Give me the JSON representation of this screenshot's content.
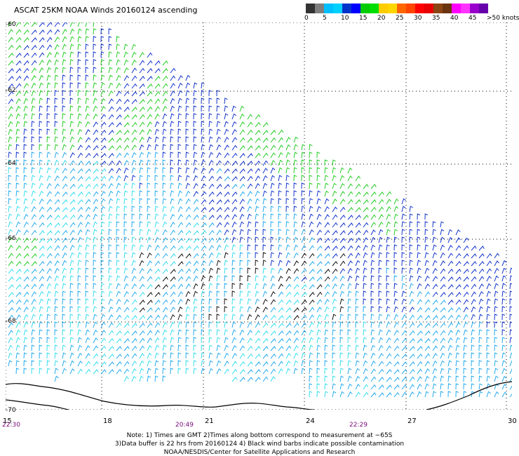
{
  "title": "ASCAT 25KM NOAA Winds 20160124 ascending",
  "scale": {
    "colors": [
      "#333333",
      "#7f7f7f",
      "#00bfff",
      "#00d0ff",
      "#0033cc",
      "#0000ff",
      "#00cc00",
      "#00dd00",
      "#ffcc00",
      "#ffd700",
      "#ff6600",
      "#ff4400",
      "#ff0000",
      "#e80000",
      "#8b4513",
      "#6b3410",
      "#ff00ff",
      "#ff33ff",
      "#9900cc",
      "#6600aa"
    ],
    "labels": [
      "0",
      "5",
      "10",
      "15",
      "20",
      "25",
      "30",
      "35",
      "40",
      "45",
      ">50 knots"
    ]
  },
  "lat_labels": [
    "-60",
    "-62",
    "-64",
    "-66",
    "-68",
    "-70"
  ],
  "lon_labels": [
    "15",
    "18",
    "21",
    "24",
    "27",
    "30"
  ],
  "time_labels": [
    "22:30",
    "20:49",
    "22:29"
  ],
  "notes": [
    "Note: 1) Times are GMT 2)Times along bottom correspond to measurement at −65S",
    "3)Data buffer is 22 hrs from 20160124 4) Black wind barbs indicate possible contamination",
    "NOAA/NESDIS/Center for Satellite Applications and Research"
  ],
  "wind_colors": {
    "green": "#22cc22",
    "blue": "#1133cc",
    "cyan": "#22aaee",
    "lightcyan": "#33ddee",
    "black": "#111111"
  }
}
